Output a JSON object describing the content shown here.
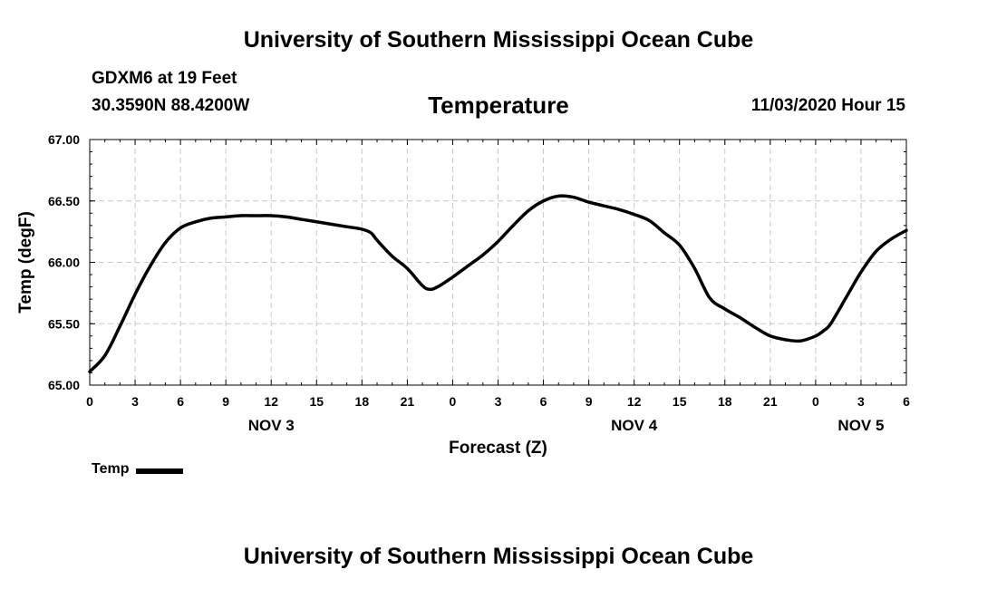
{
  "header": {
    "title": "University of Southern Mississippi Ocean Cube",
    "station": "GDXM6 at 19 Feet",
    "coords": "30.3590N 88.4200W",
    "variable": "Temperature",
    "datetime": "11/03/2020 Hour 15"
  },
  "footer": {
    "title": "University of Southern Mississippi Ocean Cube"
  },
  "legend": {
    "label": "Temp"
  },
  "colors": {
    "line": "#000000",
    "grid": "#c8c8c8"
  },
  "chart_data": {
    "type": "line",
    "title": "Temperature",
    "xlabel": "Forecast (Z)",
    "ylabel": "Temp (degF)",
    "ylim": [
      65.0,
      67.0
    ],
    "yticks": [
      "65.00",
      "65.50",
      "66.00",
      "66.50",
      "67.00"
    ],
    "yticks_values": [
      65.0,
      65.5,
      66.0,
      66.5,
      67.0
    ],
    "xlim": [
      0,
      54
    ],
    "xticks_hours": [
      0,
      3,
      6,
      9,
      12,
      15,
      18,
      21,
      24,
      27,
      30,
      33,
      36,
      39,
      42,
      45,
      48,
      51,
      54
    ],
    "xtick_labels": [
      "0",
      "3",
      "6",
      "9",
      "12",
      "15",
      "18",
      "21",
      "0",
      "3",
      "6",
      "9",
      "12",
      "15",
      "18",
      "21",
      "0",
      "3",
      "6"
    ],
    "day_labels": [
      {
        "label": "NOV 3",
        "hour": 12
      },
      {
        "label": "NOV 4",
        "hour": 36
      },
      {
        "label": "NOV 5",
        "hour": 51
      }
    ],
    "grid": true,
    "series": [
      {
        "name": "Temp",
        "x": [
          0,
          1,
          2,
          3,
          4,
          5,
          6,
          7,
          8,
          9,
          10,
          11,
          12,
          13,
          14,
          15,
          16,
          17,
          18,
          18.6,
          19,
          20,
          21,
          22,
          22.5,
          23,
          24,
          25,
          26,
          27,
          28,
          29,
          30,
          31,
          32,
          33,
          34,
          35,
          36,
          37,
          38,
          39,
          40,
          41,
          42,
          43,
          44,
          45,
          46,
          47,
          48,
          48.5,
          49,
          50,
          51,
          52,
          53,
          54
        ],
        "y": [
          65.11,
          65.24,
          65.48,
          65.74,
          65.97,
          66.16,
          66.28,
          66.33,
          66.36,
          66.37,
          66.38,
          66.38,
          66.38,
          66.37,
          66.35,
          66.33,
          66.31,
          66.29,
          66.27,
          66.24,
          66.18,
          66.05,
          65.95,
          65.81,
          65.78,
          65.8,
          65.88,
          65.97,
          66.06,
          66.17,
          66.3,
          66.42,
          66.5,
          66.54,
          66.53,
          66.49,
          66.46,
          66.43,
          66.39,
          66.34,
          66.24,
          66.14,
          65.95,
          65.71,
          65.62,
          65.55,
          65.47,
          65.4,
          65.37,
          65.36,
          65.4,
          65.44,
          65.5,
          65.71,
          65.92,
          66.09,
          66.19,
          66.26
        ]
      }
    ]
  }
}
